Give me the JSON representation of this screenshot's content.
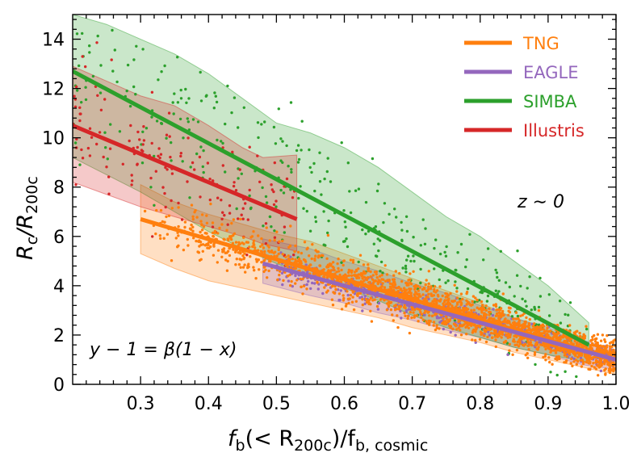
{
  "chart_data": {
    "type": "scatter",
    "xlim": [
      0.2,
      1.0
    ],
    "ylim": [
      0,
      15
    ],
    "x_ticks": [
      "0.3",
      "0.4",
      "0.5",
      "0.6",
      "0.7",
      "0.8",
      "0.9",
      "1.0"
    ],
    "y_ticks": [
      "0",
      "2",
      "4",
      "6",
      "8",
      "10",
      "12",
      "14"
    ],
    "legend_position": "top-right",
    "colors": {
      "TNG": "#ff7f0e",
      "EAGLE": "#9467bd",
      "SIMBA": "#2ca02c",
      "Illustris": "#d62728"
    },
    "series": [
      {
        "name": "TNG",
        "fit_line": {
          "x": [
            0.3,
            1.0
          ],
          "y": [
            6.7,
            1.0
          ]
        },
        "band": {
          "x": [
            0.3,
            0.35,
            0.4,
            0.45,
            0.5,
            0.55,
            0.6,
            0.65,
            0.7,
            0.75,
            0.8,
            0.85,
            0.9,
            0.95,
            1.0
          ],
          "upper": [
            8.1,
            7.4,
            6.9,
            6.5,
            6.1,
            5.8,
            5.3,
            4.8,
            4.3,
            3.8,
            3.3,
            2.7,
            2.2,
            1.7,
            1.3
          ],
          "lower": [
            5.3,
            4.7,
            4.2,
            3.9,
            3.6,
            3.3,
            3.0,
            2.7,
            2.3,
            2.0,
            1.7,
            1.3,
            1.0,
            0.7,
            0.4
          ]
        },
        "scatter": {
          "n": 2200,
          "x_range": [
            0.3,
            1.0
          ],
          "spread": 0.9
        }
      },
      {
        "name": "EAGLE",
        "fit_line": {
          "x": [
            0.48,
            1.0
          ],
          "y": [
            4.9,
            1.0
          ]
        },
        "band": {
          "x": [
            0.48,
            0.55,
            0.6,
            0.65,
            0.7,
            0.75,
            0.8,
            0.85,
            0.9,
            0.95,
            1.0
          ],
          "upper": [
            5.9,
            5.5,
            5.0,
            4.6,
            4.1,
            3.7,
            3.2,
            2.7,
            2.3,
            1.8,
            1.4
          ],
          "lower": [
            4.1,
            3.6,
            3.3,
            2.9,
            2.6,
            2.2,
            1.9,
            1.5,
            1.2,
            0.8,
            0.6
          ]
        },
        "scatter": {
          "n": 500,
          "x_range": [
            0.5,
            1.0
          ],
          "spread": 0.6
        }
      },
      {
        "name": "SIMBA",
        "fit_line": {
          "x": [
            0.2,
            0.96
          ],
          "y": [
            12.7,
            1.6
          ]
        },
        "band": {
          "x": [
            0.2,
            0.25,
            0.3,
            0.35,
            0.4,
            0.45,
            0.5,
            0.55,
            0.6,
            0.65,
            0.7,
            0.75,
            0.8,
            0.85,
            0.9,
            0.96
          ],
          "upper": [
            15.0,
            14.6,
            14.0,
            13.4,
            12.6,
            11.6,
            10.6,
            10.2,
            9.6,
            8.8,
            7.8,
            6.8,
            6.0,
            5.0,
            4.0,
            2.5
          ],
          "lower": [
            9.2,
            8.5,
            7.8,
            7.0,
            6.2,
            5.5,
            4.9,
            4.4,
            3.9,
            3.4,
            2.8,
            2.3,
            1.9,
            1.5,
            1.2,
            0.9
          ]
        },
        "scatter": {
          "n": 380,
          "x_range": [
            0.2,
            0.96
          ],
          "spread": 2.2
        }
      },
      {
        "name": "Illustris",
        "fit_line": {
          "x": [
            0.2,
            0.53
          ],
          "y": [
            10.5,
            6.7
          ]
        },
        "band": {
          "x": [
            0.2,
            0.25,
            0.3,
            0.35,
            0.4,
            0.45,
            0.48,
            0.53
          ],
          "upper": [
            12.9,
            12.3,
            11.7,
            11.3,
            10.5,
            9.6,
            9.2,
            9.3
          ],
          "lower": [
            8.2,
            7.7,
            7.2,
            6.8,
            6.4,
            6.0,
            5.7,
            5.4
          ]
        },
        "scatter": {
          "n": 150,
          "x_range": [
            0.2,
            0.53
          ],
          "spread": 1.8
        }
      }
    ],
    "annotations": {
      "redshift": "z ∼ 0",
      "formula": "y − 1 = β(1 − x)"
    },
    "labels": {
      "y_main": "R",
      "y_sub_main": "c",
      "y_slash": "/R",
      "y_sub_2": "200c",
      "x_main": "f",
      "x_sub_main": "b",
      "x_mid": "(< R",
      "x_sub_2": "200c",
      "x_end": ")/f",
      "x_sub_3": "b, cosmic"
    }
  }
}
